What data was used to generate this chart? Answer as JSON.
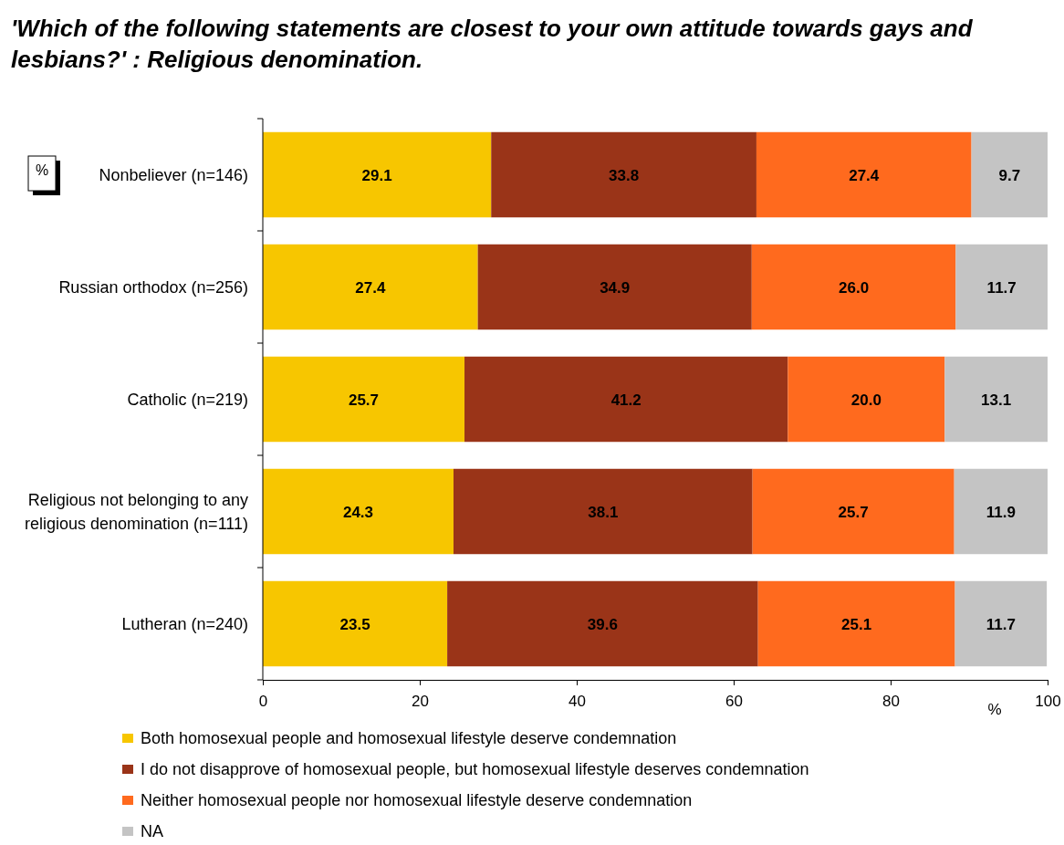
{
  "chart_data": {
    "type": "bar",
    "orientation": "horizontal",
    "stacked": true,
    "title": "'Which of the following statements are closest to your own attitude towards gays and lesbians?' : Religious denomination.",
    "categories": [
      "Nonbeliever (n=146)",
      "Russian orthodox (n=256)",
      "Catholic (n=219)",
      "Religious not belonging to any religious denomination (n=111)",
      "Lutheran (n=240)"
    ],
    "series": [
      {
        "name": "Both homosexual people and homosexual lifestyle deserve condemnation",
        "color": "#f7c600",
        "values": [
          29.1,
          27.4,
          25.7,
          24.3,
          23.5
        ],
        "value_labels": [
          "29.1",
          "27.4",
          "25.7",
          "24.3",
          "23.5"
        ]
      },
      {
        "name": "I do not disapprove of homosexual people, but homosexual lifestyle deserves condemnation",
        "color": "#9a3418",
        "values": [
          33.8,
          34.9,
          41.2,
          38.1,
          39.6
        ],
        "value_labels": [
          "33.8",
          "34.9",
          "41.2",
          "38.1",
          "39.6"
        ]
      },
      {
        "name": "Neither homosexual people nor homosexual lifestyle deserve condemnation",
        "color": "#ff6a1e",
        "values": [
          27.4,
          26.0,
          20.0,
          25.7,
          25.1
        ],
        "value_labels": [
          "27.4",
          "26.0",
          "20.0",
          "25.7",
          "25.1"
        ]
      },
      {
        "name": "NA",
        "color": "#c4c4c4",
        "values": [
          9.7,
          11.7,
          13.1,
          11.9,
          11.7
        ],
        "value_labels": [
          "9.7",
          "11.7",
          "13.1",
          "11.9",
          "11.7"
        ]
      }
    ],
    "xlim": [
      0,
      100
    ],
    "xticks": [
      0,
      20,
      40,
      60,
      80,
      100
    ],
    "xlabel": "%",
    "annotations": [
      "%"
    ],
    "legend": "bottom",
    "grid": false
  }
}
